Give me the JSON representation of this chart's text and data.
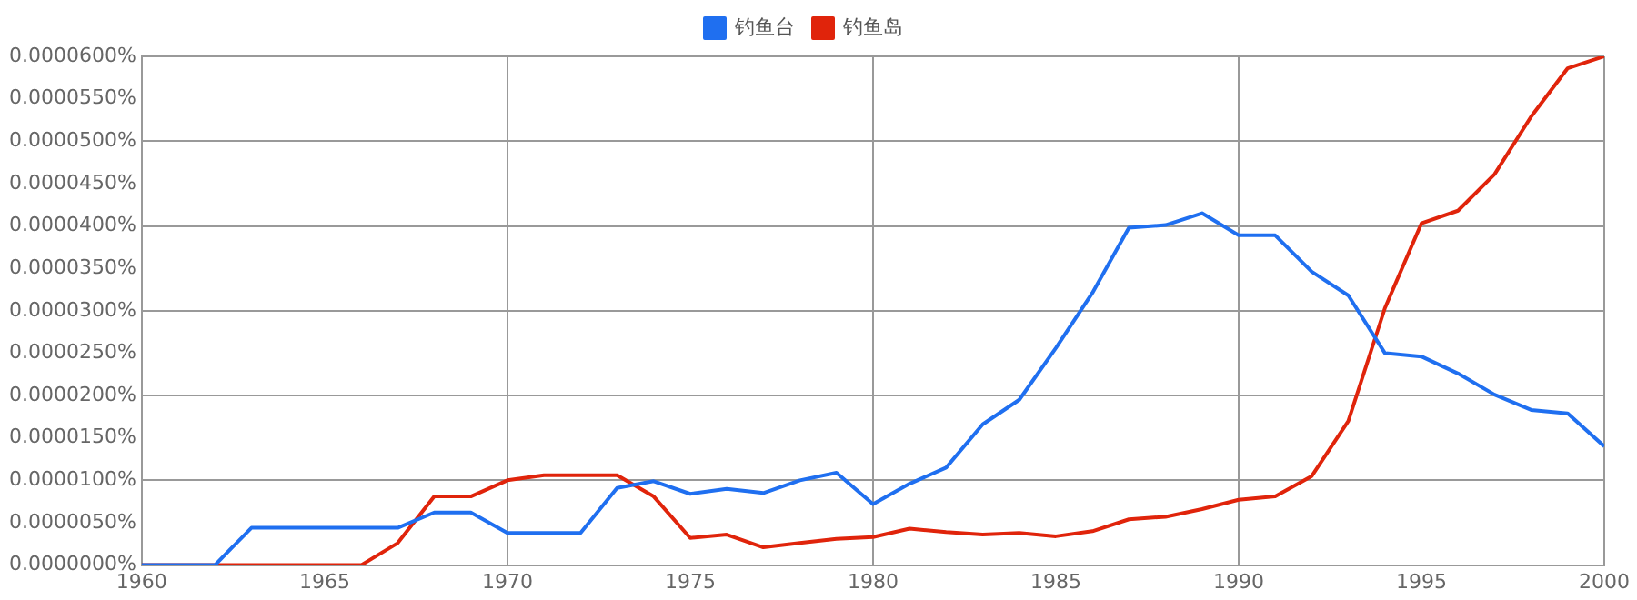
{
  "chart_data": {
    "type": "line",
    "x": [
      1960,
      1961,
      1962,
      1963,
      1964,
      1965,
      1966,
      1967,
      1968,
      1969,
      1970,
      1971,
      1972,
      1973,
      1974,
      1975,
      1976,
      1977,
      1978,
      1979,
      1980,
      1981,
      1982,
      1983,
      1984,
      1985,
      1986,
      1987,
      1988,
      1989,
      1990,
      1991,
      1992,
      1993,
      1994,
      1995,
      1996,
      1997,
      1998,
      1999,
      2000
    ],
    "series": [
      {
        "name": "钓鱼台",
        "color": "#1f6ff0",
        "values": [
          0,
          0,
          0,
          4.4e-06,
          4.4e-06,
          4.4e-06,
          4.4e-06,
          4.4e-06,
          6.2e-06,
          6.2e-06,
          3.8e-06,
          3.8e-06,
          3.8e-06,
          9.1e-06,
          9.9e-06,
          8.4e-06,
          9e-06,
          8.5e-06,
          1e-05,
          1.09e-05,
          7.2e-06,
          9.6e-06,
          1.15e-05,
          1.66e-05,
          1.95e-05,
          2.56e-05,
          3.21e-05,
          3.98e-05,
          4.01e-05,
          4.15e-05,
          3.89e-05,
          3.89e-05,
          3.46e-05,
          3.18e-05,
          2.5e-05,
          2.46e-05,
          2.26e-05,
          2.01e-05,
          1.83e-05,
          1.79e-05,
          1.4e-05
        ]
      },
      {
        "name": "钓鱼岛",
        "color": "#e0240b",
        "values": [
          0,
          0,
          0,
          0,
          0,
          0,
          0,
          2.6e-06,
          8.1e-06,
          8.1e-06,
          1e-05,
          1.06e-05,
          1.06e-05,
          1.06e-05,
          8.1e-06,
          3.2e-06,
          3.6e-06,
          2.1e-06,
          2.6e-06,
          3.1e-06,
          3.3e-06,
          4.3e-06,
          3.9e-06,
          3.6e-06,
          3.8e-06,
          3.4e-06,
          4e-06,
          5.4e-06,
          5.7e-06,
          6.6e-06,
          7.7e-06,
          8.1e-06,
          1.05e-05,
          1.7e-05,
          3.03e-05,
          4.03e-05,
          4.18e-05,
          4.61e-05,
          5.29e-05,
          5.86e-05,
          6e-05
        ]
      }
    ],
    "xlim": [
      1960,
      2000
    ],
    "xticks": [
      1960,
      1965,
      1970,
      1975,
      1980,
      1985,
      1990,
      1995,
      2000
    ],
    "ylim": [
      0,
      6e-05
    ],
    "yticks": [
      {
        "value": 0,
        "label": "0.0000000%"
      },
      {
        "value": 5e-06,
        "label": "0.0000050%"
      },
      {
        "value": 1e-05,
        "label": "0.0000100%"
      },
      {
        "value": 1.5e-05,
        "label": "0.0000150%"
      },
      {
        "value": 2e-05,
        "label": "0.0000200%"
      },
      {
        "value": 2.5e-05,
        "label": "0.0000250%"
      },
      {
        "value": 3e-05,
        "label": "0.0000300%"
      },
      {
        "value": 3.5e-05,
        "label": "0.0000350%"
      },
      {
        "value": 4e-05,
        "label": "0.0000400%"
      },
      {
        "value": 4.5e-05,
        "label": "0.0000450%"
      },
      {
        "value": 5e-05,
        "label": "0.0000500%"
      },
      {
        "value": 5.5e-05,
        "label": "0.0000550%"
      },
      {
        "value": 6e-05,
        "label": "0.0000600%"
      }
    ],
    "grid": true,
    "legend": "top",
    "marker": "none",
    "line_style": "solid"
  }
}
